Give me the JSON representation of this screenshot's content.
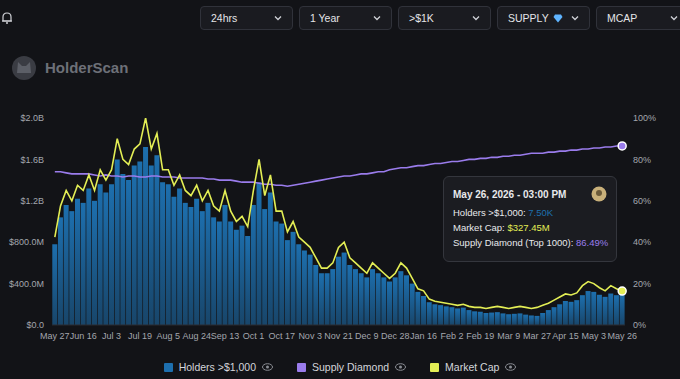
{
  "header": {
    "controls": [
      "24hrs",
      "1 Year",
      ">$1K",
      "SUPPLY",
      "MCAP"
    ],
    "brand": "HolderScan"
  },
  "chart_data": {
    "type": "bar",
    "categories": [
      "May 27",
      null,
      null,
      null,
      null,
      "Jun 16",
      null,
      null,
      null,
      null,
      "Jul 3",
      null,
      null,
      null,
      null,
      "Jul 19",
      null,
      null,
      null,
      null,
      "Aug 5",
      null,
      null,
      null,
      null,
      "Aug 24",
      null,
      null,
      null,
      null,
      "Sep 13",
      null,
      null,
      null,
      null,
      "Oct 1",
      null,
      null,
      null,
      null,
      "Oct 17",
      null,
      null,
      null,
      null,
      "Nov 3",
      null,
      null,
      null,
      null,
      "Nov 21",
      null,
      null,
      null,
      null,
      "Dec 9",
      null,
      null,
      null,
      null,
      "Dec 28",
      null,
      null,
      null,
      null,
      "Jan 16",
      null,
      null,
      null,
      null,
      "Feb 2",
      null,
      null,
      null,
      null,
      "Feb 19",
      null,
      null,
      null,
      null,
      "Mar 9",
      null,
      null,
      null,
      null,
      "Mar 27",
      null,
      null,
      null,
      null,
      "Apr 15",
      null,
      null,
      null,
      null,
      "May 3",
      null,
      null,
      null,
      null,
      "May 26"
    ],
    "series": [
      {
        "name": "Holders >$1,000",
        "type": "bar",
        "color": "#1d6fae",
        "axis": "y3",
        "values": [
          19500,
          26000,
          29000,
          27500,
          30500,
          29500,
          33000,
          30000,
          34000,
          32000,
          34000,
          40000,
          36500,
          35000,
          38500,
          39500,
          43000,
          38500,
          41000,
          34500,
          34000,
          31000,
          33000,
          29500,
          28500,
          30500,
          27500,
          29500,
          26000,
          25000,
          29000,
          25000,
          23000,
          24000,
          21500,
          29000,
          34500,
          28000,
          32000,
          25000,
          24500,
          20500,
          22500,
          19500,
          18000,
          17000,
          14500,
          12500,
          12500,
          13500,
          16500,
          17500,
          14500,
          13500,
          12500,
          11500,
          13500,
          12500,
          11500,
          10500,
          11500,
          13000,
          12000,
          10000,
          8000,
          7000,
          5500,
          5000,
          4800,
          4500,
          4300,
          4000,
          4200,
          3600,
          3300,
          3200,
          2900,
          3000,
          3100,
          2800,
          2600,
          2700,
          2800,
          2500,
          2300,
          2200,
          2900,
          3600,
          4300,
          5000,
          5800,
          5600,
          6000,
          7200,
          8200,
          8000,
          7300,
          6800,
          7600,
          7200,
          7500
        ]
      },
      {
        "name": "Supply Diamond",
        "type": "line",
        "color": "#9a7cec",
        "axis": "y2",
        "values": [
          74,
          74,
          73.5,
          73,
          73,
          73,
          73,
          72.5,
          72,
          72.5,
          72,
          72,
          71.5,
          72,
          72,
          71.5,
          71.5,
          72,
          72,
          71.5,
          71.5,
          71.5,
          71,
          71,
          71,
          71,
          71,
          70.5,
          70.5,
          70,
          70,
          70,
          69.5,
          69,
          69,
          69,
          68.5,
          68,
          68,
          67.5,
          67.5,
          67,
          67.5,
          68,
          68.5,
          69,
          69.5,
          70,
          70.5,
          71,
          71.5,
          72,
          72,
          72.5,
          73,
          73,
          73.5,
          74,
          74,
          75,
          75.5,
          76,
          76,
          76.5,
          77,
          77,
          77.5,
          78,
          78,
          78.5,
          79,
          79,
          79.5,
          80,
          80,
          80.5,
          80.5,
          81,
          81,
          81.5,
          81.5,
          82,
          82,
          82.5,
          83,
          83,
          83,
          83.5,
          83.5,
          84,
          84,
          84.5,
          84.5,
          85,
          85,
          85.5,
          85.5,
          86,
          86,
          86.5,
          86.49
        ]
      },
      {
        "name": "Market Cap",
        "type": "line",
        "color": "#e3ee55",
        "values": [
          850000000,
          1150000000,
          1300000000,
          1200000000,
          1350000000,
          1300000000,
          1450000000,
          1300000000,
          1500000000,
          1400000000,
          1500000000,
          1800000000,
          1600000000,
          1550000000,
          1700000000,
          1750000000,
          2000000000,
          1700000000,
          1850000000,
          1500000000,
          1500000000,
          1350000000,
          1450000000,
          1300000000,
          1250000000,
          1350000000,
          1200000000,
          1300000000,
          1150000000,
          1100000000,
          1300000000,
          1100000000,
          1000000000,
          1050000000,
          950000000,
          1300000000,
          1600000000,
          1250000000,
          1450000000,
          1100000000,
          1100000000,
          900000000,
          1000000000,
          850000000,
          800000000,
          750000000,
          650000000,
          550000000,
          550000000,
          600000000,
          750000000,
          800000000,
          650000000,
          600000000,
          550000000,
          500000000,
          600000000,
          550000000,
          500000000,
          450000000,
          500000000,
          600000000,
          550000000,
          450000000,
          350000000,
          330000000,
          250000000,
          230000000,
          220000000,
          210000000,
          200000000,
          190000000,
          200000000,
          180000000,
          170000000,
          170000000,
          160000000,
          170000000,
          180000000,
          170000000,
          160000000,
          170000000,
          180000000,
          170000000,
          160000000,
          170000000,
          190000000,
          210000000,
          240000000,
          270000000,
          300000000,
          290000000,
          310000000,
          380000000,
          420000000,
          400000000,
          360000000,
          330000000,
          380000000,
          350000000,
          327450000
        ]
      }
    ],
    "ylim": [
      0,
      2000000000
    ],
    "yticks": [
      {
        "value": 0,
        "label": "$0.0"
      },
      {
        "value": 400000000,
        "label": "$400.0M"
      },
      {
        "value": 800000000,
        "label": "$800.0M"
      },
      {
        "value": 1200000000,
        "label": "$1.2B"
      },
      {
        "value": 1600000000,
        "label": "$1.6B"
      },
      {
        "value": 2000000000,
        "label": "$2.0B"
      }
    ],
    "y2lim": [
      0,
      100
    ],
    "y2ticks": [
      {
        "value": 0,
        "label": "0%"
      },
      {
        "value": 20,
        "label": "20%"
      },
      {
        "value": 40,
        "label": "40%"
      },
      {
        "value": 60,
        "label": "60%"
      },
      {
        "value": 80,
        "label": "80%"
      },
      {
        "value": 100,
        "label": "100%"
      }
    ],
    "y3lim": [
      0,
      50000
    ],
    "grid": false,
    "tooltip": {
      "title": "May 26, 2026 - 03:00 PM",
      "rows": [
        {
          "label": "Holders >$1,000:",
          "value": "7.50K"
        },
        {
          "label": "Market Cap:",
          "value": "$327.45M"
        },
        {
          "label": "Supply Diamond (Top 1000):",
          "value": "86.49%"
        }
      ]
    }
  }
}
